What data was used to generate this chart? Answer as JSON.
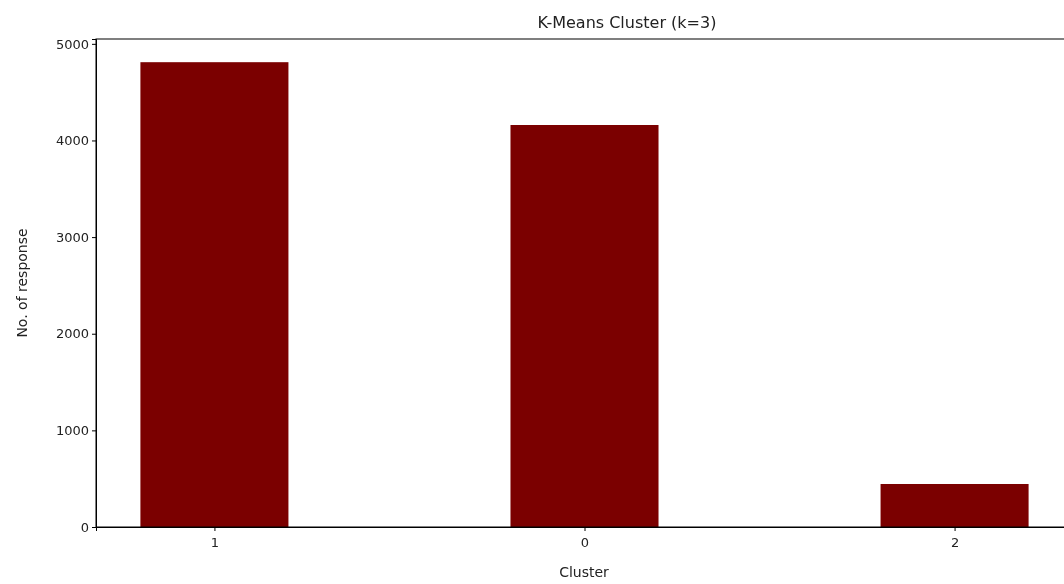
{
  "chart_data": {
    "type": "bar",
    "title": "K-Means Cluster (k=3)",
    "xlabel": "Cluster",
    "ylabel": "No. of response",
    "categories": [
      "1",
      "0",
      "2"
    ],
    "values": [
      4810,
      4160,
      445
    ],
    "color": "#7b0000",
    "ylim": [
      0,
      5050
    ],
    "yticks": [
      0,
      1000,
      2000,
      3000,
      4000,
      5000
    ],
    "grid": false
  }
}
